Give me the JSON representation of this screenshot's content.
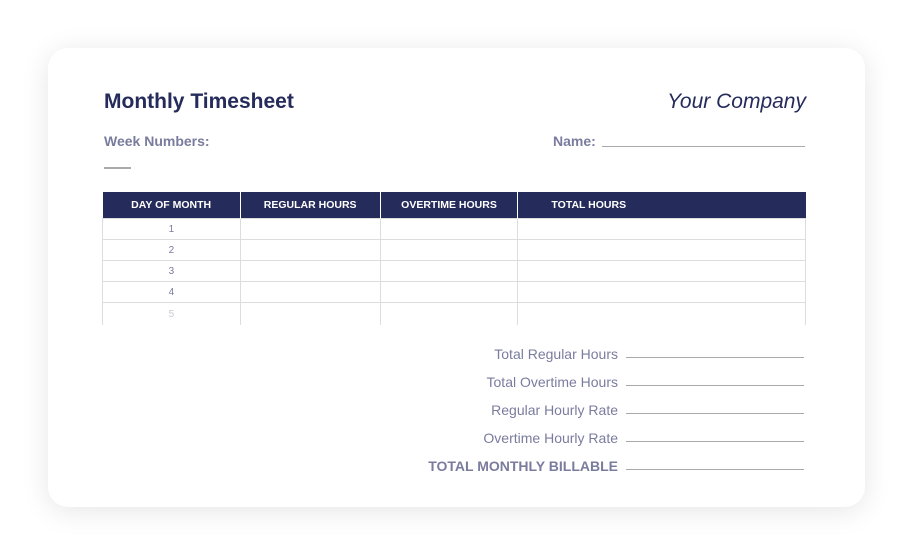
{
  "header": {
    "title": "Monthly Timesheet",
    "company": "Your Company",
    "week_label": "Week Numbers:",
    "name_label": "Name:"
  },
  "table": {
    "columns": [
      "DAY OF MONTH",
      "REGULAR HOURS",
      "OVERTIME HOURS",
      "TOTAL HOURS"
    ],
    "rows": [
      "1",
      "2",
      "3",
      "4",
      "5"
    ]
  },
  "summary": [
    "Total Regular Hours",
    "Total Overtime Hours",
    "Regular Hourly Rate",
    "Overtime Hourly Rate",
    "TOTAL MONTHLY BILLABLE"
  ],
  "colors": {
    "primary": "#252b5a",
    "muted": "#7a7c9e"
  }
}
